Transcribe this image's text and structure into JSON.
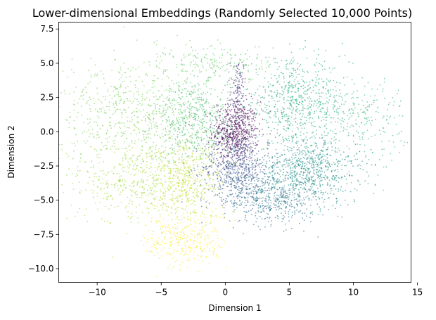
{
  "chart_data": {
    "type": "scatter",
    "title": "Lower-dimensional Embeddings (Randomly Selected 10,000 Points)",
    "xlabel": "Dimension 1",
    "ylabel": "Dimension 2",
    "xlim": [
      -13.0,
      14.5
    ],
    "ylim": [
      -11.0,
      8.0
    ],
    "xticks": [
      -10,
      -5,
      0,
      5,
      10,
      15
    ],
    "xtick_labels": [
      "−10",
      "−5",
      "0",
      "5",
      "10",
      "15"
    ],
    "yticks": [
      -10.0,
      -7.5,
      -5.0,
      -2.5,
      0.0,
      2.5,
      5.0,
      7.5
    ],
    "ytick_labels": [
      "−10.0",
      "−7.5",
      "−5.0",
      "−2.5",
      "0.0",
      "2.5",
      "5.0",
      "7.5"
    ],
    "grid": false,
    "colormap": "viridis",
    "marker_alpha": 0.6,
    "approx_point_count": 10000,
    "clusters": [
      {
        "label": "purple-core",
        "color": "#440154",
        "center": [
          0.8,
          0.0
        ],
        "spread": [
          0.9,
          1.1
        ],
        "share": 0.1
      },
      {
        "label": "purple-spike",
        "color": "#472d7b",
        "center": [
          1.0,
          3.0
        ],
        "spread": [
          0.3,
          1.2
        ],
        "share": 0.02
      },
      {
        "label": "indigo-lower",
        "color": "#3b528b",
        "center": [
          0.8,
          -2.6
        ],
        "spread": [
          1.3,
          1.2
        ],
        "share": 0.1
      },
      {
        "label": "slate-bottom",
        "color": "#2c728e",
        "center": [
          3.5,
          -4.8
        ],
        "spread": [
          1.8,
          1.0
        ],
        "share": 0.08
      },
      {
        "label": "teal-right",
        "color": "#21918c",
        "center": [
          6.5,
          -2.8
        ],
        "spread": [
          2.0,
          1.3
        ],
        "share": 0.13
      },
      {
        "label": "teal-green-upper",
        "color": "#28ae80",
        "center": [
          5.5,
          2.2
        ],
        "spread": [
          2.0,
          1.5
        ],
        "share": 0.11
      },
      {
        "label": "right-fringe",
        "color": "#35b779",
        "center": [
          10.5,
          1.0
        ],
        "spread": [
          1.8,
          1.5
        ],
        "share": 0.04
      },
      {
        "label": "green-top-arm",
        "color": "#5ec962",
        "center": [
          -0.5,
          5.0
        ],
        "spread": [
          2.0,
          0.7
        ],
        "share": 0.03
      },
      {
        "label": "green-left-mid",
        "color": "#4ac16d",
        "center": [
          -2.5,
          0.8
        ],
        "spread": [
          1.5,
          1.5
        ],
        "share": 0.09
      },
      {
        "label": "light-green-left",
        "color": "#7ad151",
        "center": [
          -7.5,
          1.5
        ],
        "spread": [
          2.8,
          2.0
        ],
        "share": 0.1
      },
      {
        "label": "yellow-green-lower-left",
        "color": "#a5db36",
        "center": [
          -7.0,
          -3.5
        ],
        "spread": [
          2.6,
          1.6
        ],
        "share": 0.08
      },
      {
        "label": "yellow-green-center",
        "color": "#c2df23",
        "center": [
          -3.2,
          -3.5
        ],
        "spread": [
          1.4,
          1.5
        ],
        "share": 0.07
      },
      {
        "label": "yellow-bottom",
        "color": "#fde725",
        "center": [
          -3.0,
          -8.0
        ],
        "spread": [
          1.6,
          1.0
        ],
        "share": 0.05
      }
    ]
  }
}
